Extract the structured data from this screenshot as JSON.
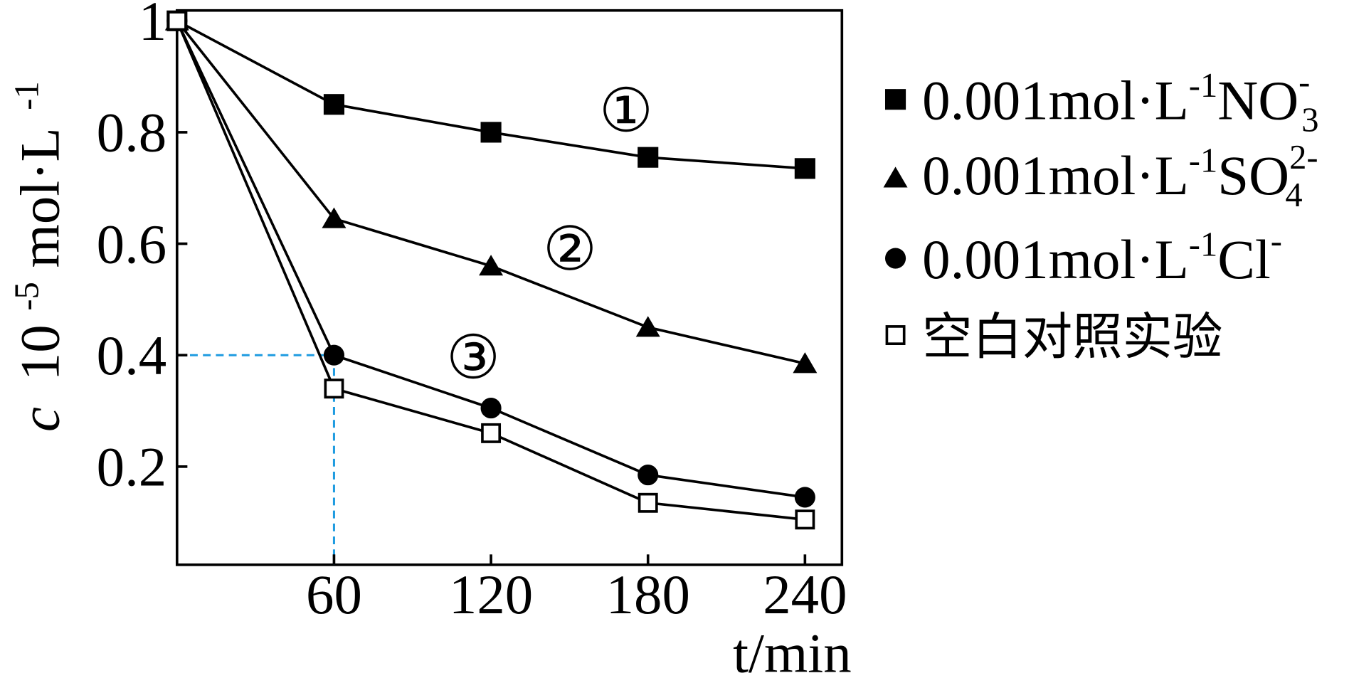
{
  "chart_data": {
    "type": "line",
    "xlabel": "t/min",
    "ylabel": {
      "var": "c",
      "base": "10",
      "exp": "-5",
      "unit": "mol·L",
      "unit_exp": "-1"
    },
    "x_tick_labels": [
      "60",
      "120",
      "180",
      "240"
    ],
    "y_tick_labels": [
      "1",
      "0.8",
      "0.6",
      "0.4",
      "0.2"
    ],
    "y_tick_values": [
      1.0,
      0.8,
      0.6,
      0.4,
      0.2
    ],
    "x_tick_values": [
      60,
      120,
      180,
      240
    ],
    "xlim": [
      0,
      256
    ],
    "ylim": [
      0.03,
      1.0
    ],
    "grid": false,
    "legend_position": "right",
    "series": [
      {
        "marker": "filled-square",
        "legend": {
          "main": "0.001mol·L",
          "sup1": "-1",
          "ion": "NO",
          "sub": "3",
          "sup2": "-"
        },
        "annotation": "①",
        "x": [
          0,
          60,
          120,
          180,
          240
        ],
        "y": [
          1.0,
          0.85,
          0.8,
          0.755,
          0.735
        ]
      },
      {
        "marker": "filled-triangle",
        "legend": {
          "main": "0.001mol·L",
          "sup1": "-1",
          "ion": "SO",
          "sub": "4",
          "sup2": "2-"
        },
        "annotation": "②",
        "x": [
          0,
          60,
          120,
          180,
          240
        ],
        "y": [
          1.0,
          0.645,
          0.56,
          0.45,
          0.385
        ]
      },
      {
        "marker": "filled-circle",
        "legend": {
          "main": "0.001mol·L",
          "sup1": "-1",
          "ion": "Cl",
          "sub": "",
          "sup2": "-"
        },
        "annotation": "③",
        "x": [
          0,
          60,
          120,
          180,
          240
        ],
        "y": [
          1.0,
          0.4,
          0.305,
          0.185,
          0.145
        ]
      },
      {
        "marker": "open-square",
        "legend": {
          "main": "空白对照实验"
        },
        "annotation": "",
        "x": [
          0,
          60,
          120,
          180,
          240
        ],
        "y": [
          1.0,
          0.34,
          0.26,
          0.135,
          0.105
        ]
      }
    ],
    "reference_lines": {
      "x": 60,
      "y": 0.4,
      "color": "#1e9be0",
      "style": "dashed"
    }
  }
}
